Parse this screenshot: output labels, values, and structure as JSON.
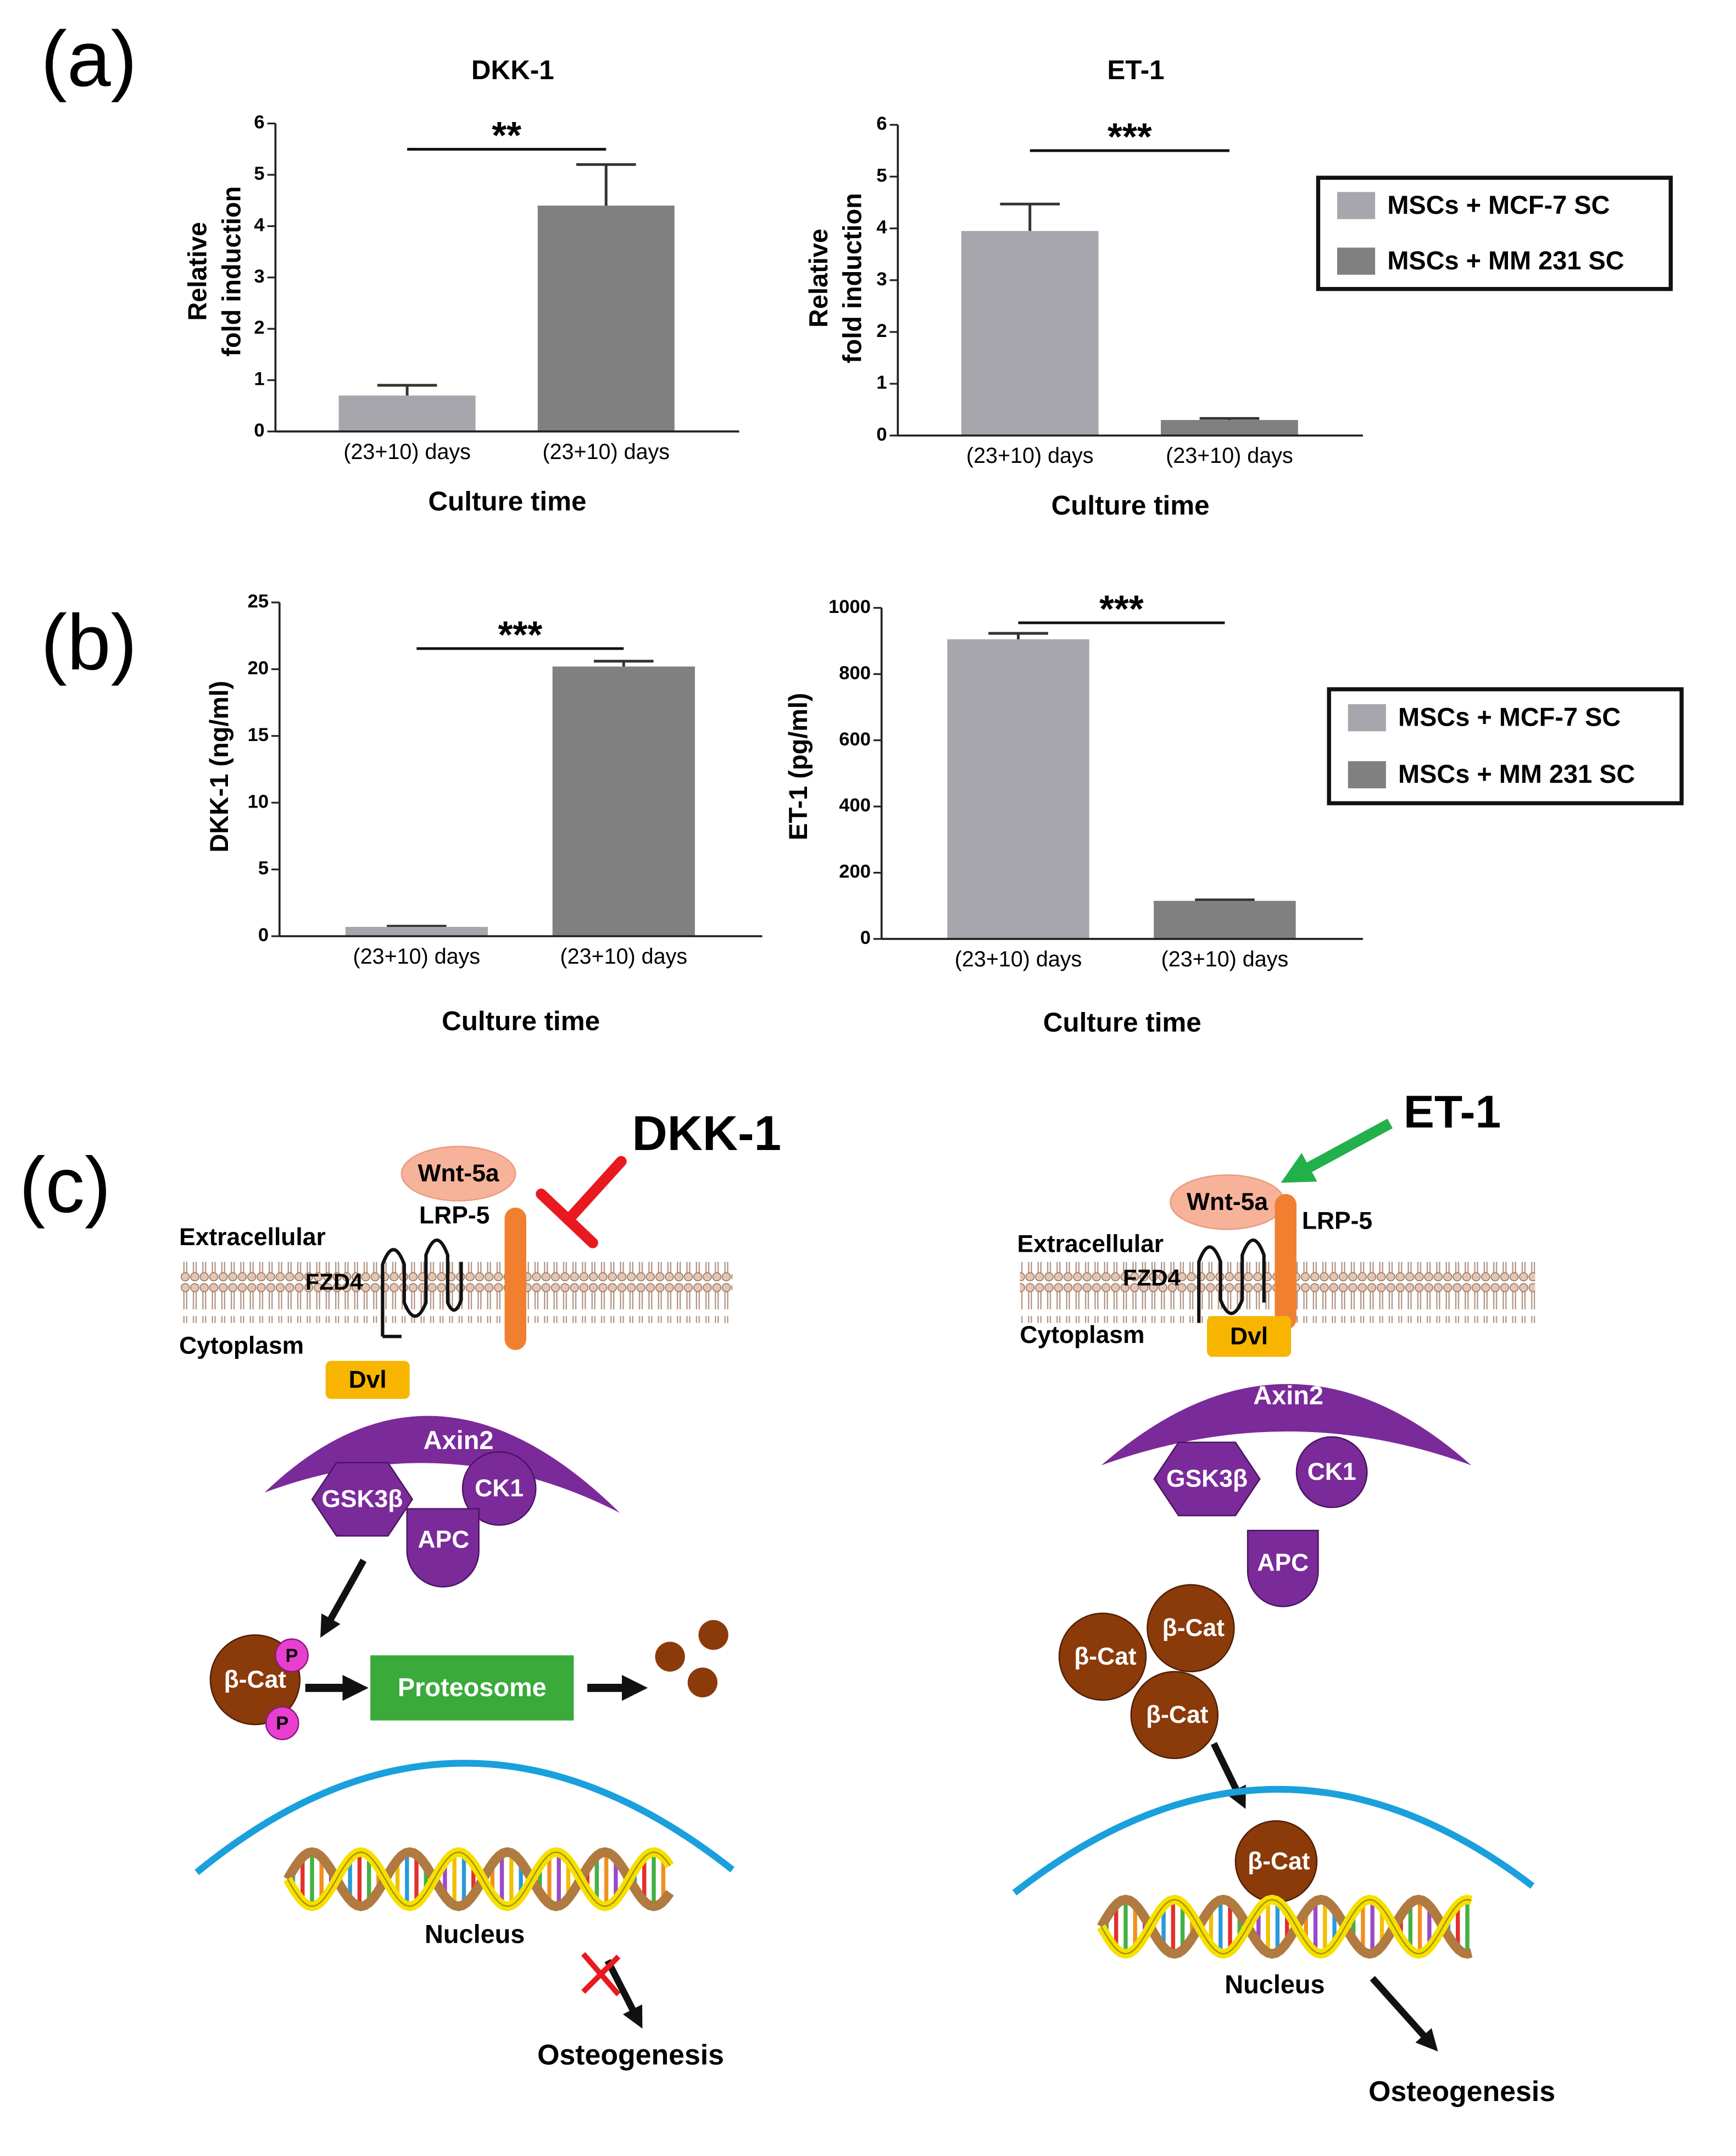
{
  "panel_labels": [
    "(a)",
    "(b)",
    "(c)"
  ],
  "chart_data": [
    {
      "type": "bar",
      "title": "DKK-1",
      "ylabel": [
        "Relative",
        "fold induction"
      ],
      "xlabel": "Culture time",
      "categories": [
        "(23+10) days",
        "(23+10) days"
      ],
      "values": [
        0.7,
        4.4
      ],
      "errors": [
        0.2,
        0.8
      ],
      "colors": [
        "#a7a6ac",
        "#808080"
      ],
      "ylim": [
        0,
        6
      ],
      "yticks": [
        0,
        1,
        2,
        3,
        4,
        5,
        6
      ],
      "annotation": "**"
    },
    {
      "type": "bar",
      "title": "ET-1",
      "ylabel": [
        "Relative",
        "fold induction"
      ],
      "xlabel": "Culture time",
      "categories": [
        "(23+10) days",
        "(23+10) days"
      ],
      "values": [
        3.95,
        0.3
      ],
      "errors": [
        0.52,
        0.03
      ],
      "colors": [
        "#a7a6ac",
        "#808080"
      ],
      "ylim": [
        0,
        6
      ],
      "yticks": [
        0,
        1,
        2,
        3,
        4,
        5,
        6
      ],
      "annotation": "***",
      "legend": [
        {
          "name": "MSCs + MCF-7 SC",
          "color": "#a7a6ac"
        },
        {
          "name": "MSCs + MM 231 SC",
          "color": "#808080"
        }
      ]
    },
    {
      "type": "bar",
      "ylabel": "DKK-1 (ng/ml)",
      "xlabel": "Culture time",
      "categories": [
        "(23+10) days",
        "(23+10) days"
      ],
      "values": [
        0.7,
        20.2
      ],
      "errors": [
        0.05,
        0.4
      ],
      "colors": [
        "#a7a6ac",
        "#808080"
      ],
      "ylim": [
        0,
        25
      ],
      "yticks": [
        0,
        5,
        10,
        15,
        20,
        25
      ],
      "annotation": "***"
    },
    {
      "type": "bar",
      "ylabel": "ET-1 (pg/ml)",
      "xlabel": "Culture time",
      "categories": [
        "(23+10) days",
        "(23+10) days"
      ],
      "values": [
        905,
        115
      ],
      "errors": [
        18,
        3
      ],
      "colors": [
        "#a7a6ac",
        "#808080"
      ],
      "ylim": [
        0,
        1000
      ],
      "yticks": [
        0,
        200,
        400,
        600,
        800,
        1000
      ],
      "annotation": "***",
      "legend": [
        {
          "name": "MSCs + MCF-7 SC",
          "color": "#a7a6ac"
        },
        {
          "name": "MSCs + MM 231 SC",
          "color": "#808080"
        }
      ]
    }
  ],
  "diagram": {
    "left": [
      "DKK-1",
      "Wnt-5a",
      "LRP-5",
      "Extracellular",
      "FZD4",
      "Cytoplasm",
      "Dvl",
      "Axin2",
      "GSK3β",
      "CK1",
      "APC",
      "β-Cat",
      "P",
      "P",
      "Proteosome",
      "Nucleus",
      "Osteogenesis"
    ],
    "right": [
      "ET-1",
      "Wnt-5a",
      "LRP-5",
      "Extracellular",
      "FZD4",
      "Cytoplasm",
      "Dvl",
      "Axin2",
      "GSK3β",
      "CK1",
      "APC",
      "β-Cat",
      "β-Cat",
      "β-Cat",
      "β-Cat",
      "Nucleus",
      "Osteogenesis"
    ]
  }
}
